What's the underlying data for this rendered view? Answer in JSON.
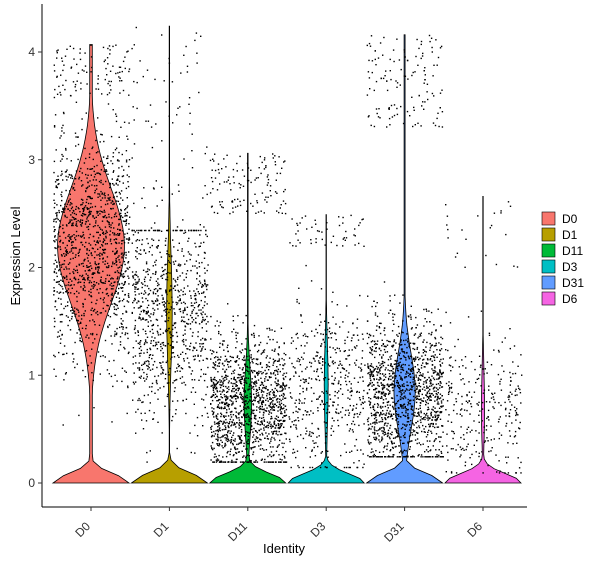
{
  "chart_data": {
    "type": "violin",
    "xlabel": "Identity",
    "ylabel": "Expression Level",
    "categories": [
      "D0",
      "D1",
      "D11",
      "D3",
      "D31",
      "D6"
    ],
    "ylim": [
      -0.2,
      4.4
    ],
    "yticks": [
      0,
      1,
      2,
      3,
      4
    ],
    "grid": false,
    "legend_position": "right",
    "legend": [
      "D0",
      "D1",
      "D11",
      "D3",
      "D31",
      "D6"
    ],
    "series": [
      {
        "name": "D0",
        "color": "#F8766D",
        "max": 4.07,
        "zero_fraction": 0.12,
        "center": 2.2,
        "spread": 0.75,
        "points": 1300,
        "upper_band": 3.6,
        "lower_band": 0.25
      },
      {
        "name": "D1",
        "color": "#B79F00",
        "max": 4.24,
        "zero_fraction": 0.62,
        "center": 1.6,
        "spread": 0.7,
        "points": 900,
        "upper_band": 2.35,
        "lower_band": 0.2
      },
      {
        "name": "D11",
        "color": "#00BA38",
        "max": 3.06,
        "zero_fraction": 0.55,
        "center": 0.75,
        "spread": 0.45,
        "points": 1400,
        "upper_band": 2.5,
        "lower_band": 0.2
      },
      {
        "name": "D3",
        "color": "#00BFC4",
        "max": 2.49,
        "zero_fraction": 0.7,
        "center": 0.9,
        "spread": 0.55,
        "points": 500,
        "upper_band": 2.2,
        "lower_band": 0.15
      },
      {
        "name": "D31",
        "color": "#619CFF",
        "max": 4.16,
        "zero_fraction": 0.3,
        "center": 0.85,
        "spread": 0.5,
        "points": 1500,
        "upper_band": 3.3,
        "lower_band": 0.25
      },
      {
        "name": "D6",
        "color": "#F564E3",
        "max": 2.66,
        "zero_fraction": 0.75,
        "center": 0.7,
        "spread": 0.5,
        "points": 300,
        "upper_band": 2.0,
        "lower_band": 0.1
      }
    ]
  }
}
